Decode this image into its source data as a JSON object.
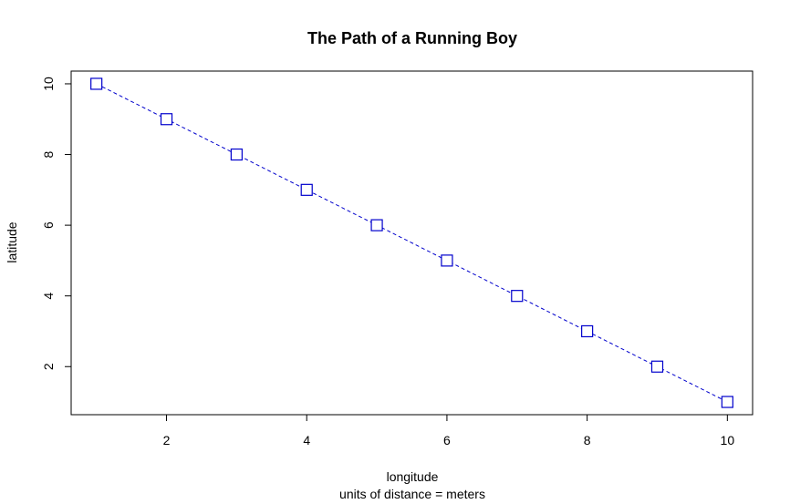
{
  "chart_data": {
    "type": "line",
    "title": "The Path of a Running Boy",
    "xlabel": "longitude",
    "subtitle": "units of distance = meters",
    "ylabel": "latitude",
    "x": [
      1,
      2,
      3,
      4,
      5,
      6,
      7,
      8,
      9,
      10
    ],
    "y": [
      10,
      9,
      8,
      7,
      6,
      5,
      4,
      3,
      2,
      1
    ],
    "xlim": [
      0.64,
      10.36
    ],
    "ylim": [
      0.64,
      10.36
    ],
    "xticks": [
      2,
      4,
      6,
      8,
      10
    ],
    "yticks": [
      2,
      4,
      6,
      8,
      10
    ],
    "line_style": "dashed",
    "marker": "open-square",
    "color": "#0000cc",
    "grid": false,
    "legend": "none"
  }
}
